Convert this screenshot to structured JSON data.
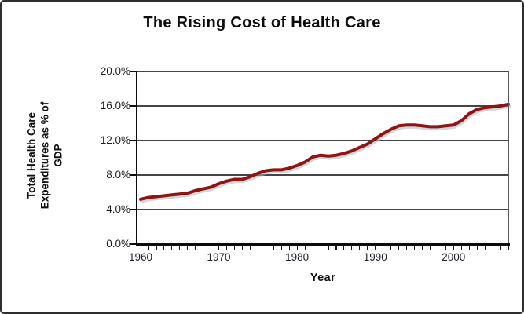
{
  "chart": {
    "title": "The Rising Cost of Health Care",
    "y_axis": {
      "title_lines": [
        "Total Health Care",
        "Expenditures as % of",
        "GDP"
      ],
      "tick_labels": [
        "20.0%",
        "16.0%",
        "12.0%",
        "8.0%",
        "4.0%",
        "0.0%"
      ]
    },
    "x_axis": {
      "title": "Year",
      "tick_labels": [
        "1960",
        "1970",
        "1980",
        "1990",
        "2000"
      ]
    }
  },
  "chart_data": {
    "type": "line",
    "title": "The Rising Cost of Health Care",
    "xlabel": "Year",
    "ylabel": "Total Health Care Expenditures as % of GDP",
    "x": [
      1960,
      1961,
      1962,
      1963,
      1964,
      1965,
      1966,
      1967,
      1968,
      1969,
      1970,
      1971,
      1972,
      1973,
      1974,
      1975,
      1976,
      1977,
      1978,
      1979,
      1980,
      1981,
      1982,
      1983,
      1984,
      1985,
      1986,
      1987,
      1988,
      1989,
      1990,
      1991,
      1992,
      1993,
      1994,
      1995,
      1996,
      1997,
      1998,
      1999,
      2000,
      2001,
      2002,
      2003,
      2004,
      2005,
      2006,
      2007
    ],
    "values": [
      5.2,
      5.4,
      5.5,
      5.6,
      5.7,
      5.8,
      5.9,
      6.2,
      6.4,
      6.6,
      7.0,
      7.3,
      7.5,
      7.5,
      7.8,
      8.2,
      8.5,
      8.6,
      8.6,
      8.8,
      9.1,
      9.5,
      10.1,
      10.3,
      10.2,
      10.3,
      10.5,
      10.8,
      11.2,
      11.6,
      12.2,
      12.8,
      13.3,
      13.7,
      13.8,
      13.8,
      13.7,
      13.6,
      13.6,
      13.7,
      13.8,
      14.3,
      15.1,
      15.6,
      15.8,
      15.9,
      16.0,
      16.2
    ],
    "ylim": [
      0,
      20
    ],
    "y_tick_step": 4,
    "xlim": [
      1960,
      2007
    ],
    "x_labeled_ticks": [
      1960,
      1970,
      1980,
      1990,
      2000
    ],
    "grid": true,
    "legend": "none",
    "line_color": "#8e1515",
    "line_shadow_color": "#b3b3b3"
  }
}
